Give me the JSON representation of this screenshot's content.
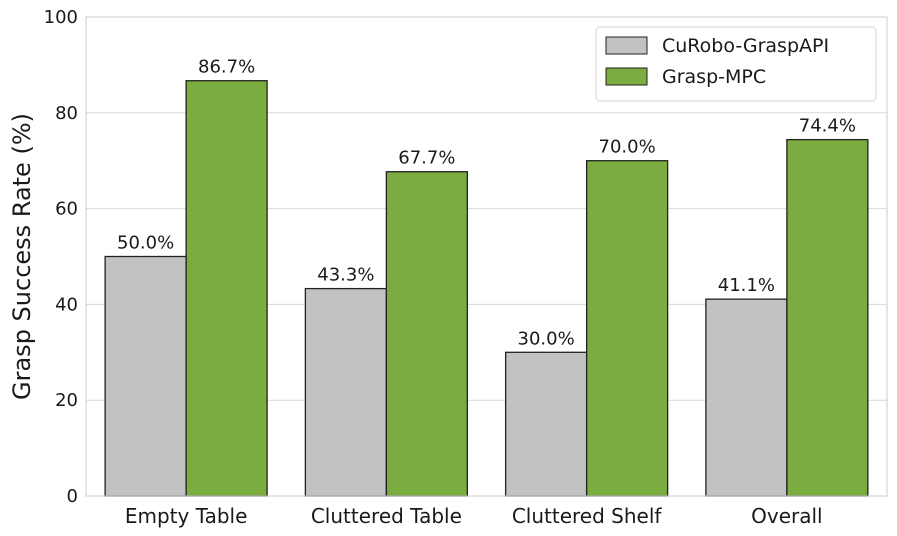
{
  "chart_data": {
    "type": "bar",
    "title": "",
    "xlabel": "",
    "ylabel": "Grasp Success Rate (%)",
    "ylim": [
      0,
      100
    ],
    "yticks": [
      0,
      20,
      40,
      60,
      80,
      100
    ],
    "grid": "y",
    "legend_position": "top-right",
    "categories": [
      "Empty Table",
      "Cluttered Table",
      "Cluttered Shelf",
      "Overall"
    ],
    "series": [
      {
        "name": "CuRobo-GraspAPI",
        "values": [
          50.0,
          43.3,
          30.0,
          41.1
        ],
        "labels": [
          "50.0%",
          "43.3%",
          "30.0%",
          "41.1%"
        ],
        "color": "#c2c2c2"
      },
      {
        "name": "Grasp-MPC",
        "values": [
          86.7,
          67.7,
          70.0,
          74.4
        ],
        "labels": [
          "86.7%",
          "67.7%",
          "70.0%",
          "74.4%"
        ],
        "color": "#7aac3f"
      }
    ]
  }
}
